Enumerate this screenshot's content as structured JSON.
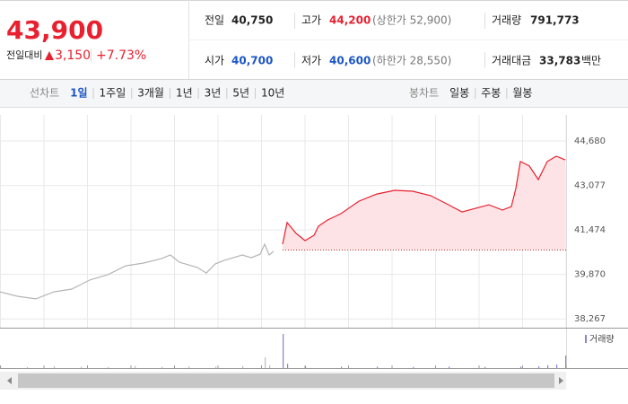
{
  "header": {
    "price": "43,900",
    "change_label": "전일대비",
    "change": "3,150",
    "change_rate": "+7.73%"
  },
  "stats": [
    {
      "label": "전일",
      "value": "40,750"
    },
    {
      "label": "고가",
      "value": "44,200",
      "note": "(상한가 52,900)"
    },
    {
      "label": "거래량",
      "value": "791,773"
    },
    {
      "label": "시가",
      "value": "40,700"
    },
    {
      "label": "저가",
      "value": "40,600",
      "note": "(하한가 28,550)"
    },
    {
      "label": "거래대금",
      "value": "33,783",
      "unit": "백만"
    }
  ],
  "line_tabs": {
    "label": "선차트",
    "items": [
      "1일",
      "1주일",
      "3개월",
      "1년",
      "3년",
      "5년",
      "10년"
    ]
  },
  "candle_tabs": {
    "label": "봉차트",
    "items": [
      "일봉",
      "주봉",
      "월봉"
    ]
  },
  "chart_data": {
    "type": "line",
    "x": [
      0,
      20,
      40,
      60,
      80,
      100,
      120,
      140,
      160,
      180,
      190,
      200,
      220,
      230,
      240,
      250,
      260,
      270,
      280,
      290,
      295,
      300,
      305,
      315,
      320,
      330,
      340,
      350,
      355,
      365,
      380,
      400,
      420,
      440,
      460,
      480,
      500,
      515,
      530,
      545,
      560,
      570,
      575,
      580,
      590,
      600,
      610,
      620,
      630
    ],
    "xlim": [
      0,
      631
    ],
    "ylim": [
      37950,
      45620
    ],
    "yticks": [
      {
        "value": 44680,
        "label": "44,680"
      },
      {
        "value": 43077,
        "label": "43,077"
      },
      {
        "value": 41474,
        "label": "41,474"
      },
      {
        "value": 39870,
        "label": "39,870"
      },
      {
        "value": 38267,
        "label": "38,267"
      }
    ],
    "baseline": 40750,
    "series": [
      {
        "color": "#b5b5b5",
        "values": [
          39240,
          39080,
          38990,
          39240,
          39340,
          39670,
          39860,
          40180,
          40280,
          40440,
          40570,
          40310,
          40120,
          39920,
          40250,
          40380,
          40470,
          40570,
          40470,
          40600,
          40960,
          40570,
          40700,
          null,
          null,
          null,
          null,
          null,
          null,
          null,
          null,
          null,
          null,
          null,
          null,
          null,
          null,
          null,
          null,
          null,
          null,
          null,
          null,
          null,
          null,
          null,
          null,
          null,
          null
        ]
      },
      {
        "color": "#e8202f",
        "fill": "#fde3e5",
        "values": [
          null,
          null,
          null,
          null,
          null,
          null,
          null,
          null,
          null,
          null,
          null,
          null,
          null,
          null,
          null,
          null,
          null,
          null,
          null,
          null,
          null,
          null,
          null,
          40960,
          41740,
          41350,
          41090,
          41280,
          41610,
          41830,
          42060,
          42510,
          42770,
          42900,
          42870,
          42710,
          42380,
          42120,
          42250,
          42380,
          42190,
          42320,
          42970,
          43940,
          43780,
          43290,
          43940,
          44130,
          44000
        ]
      }
    ],
    "volume": {
      "label": "거래량",
      "legend_color": "#8e80cf",
      "x": [
        0,
        30,
        60,
        90,
        120,
        150,
        180,
        210,
        240,
        270,
        295,
        300,
        315,
        320,
        340,
        380,
        420,
        460,
        500,
        540,
        580,
        600,
        610,
        620,
        630
      ],
      "ylim": [
        0,
        100
      ],
      "series": [
        {
          "color": "#bcbcbc",
          "values": [
            4,
            3,
            5,
            4,
            3,
            6,
            4,
            5,
            4,
            6,
            30,
            8,
            null,
            null,
            null,
            null,
            null,
            null,
            null,
            null,
            null,
            null,
            null,
            null,
            null
          ]
        },
        {
          "color": "#8e80cf",
          "values": [
            null,
            null,
            null,
            null,
            null,
            null,
            null,
            null,
            null,
            null,
            null,
            null,
            95,
            12,
            5,
            4,
            4,
            3,
            4,
            3,
            4,
            5,
            8,
            10,
            35
          ]
        }
      ]
    }
  }
}
